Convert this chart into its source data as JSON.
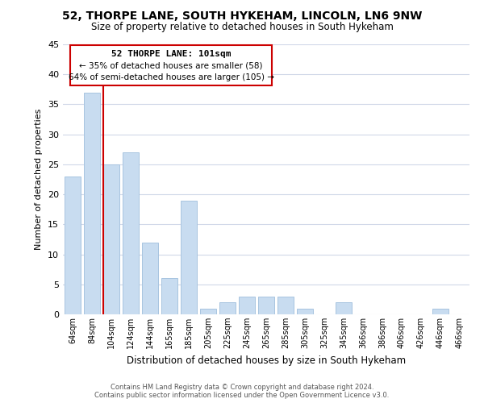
{
  "title": "52, THORPE LANE, SOUTH HYKEHAM, LINCOLN, LN6 9NW",
  "subtitle": "Size of property relative to detached houses in South Hykeham",
  "xlabel": "Distribution of detached houses by size in South Hykeham",
  "ylabel": "Number of detached properties",
  "bar_color": "#c8dcf0",
  "bar_edge_color": "#a8c4e0",
  "annotation_box_color": "#ffffff",
  "annotation_border_color": "#cc0000",
  "marker_line_color": "#cc0000",
  "bins": [
    "64sqm",
    "84sqm",
    "104sqm",
    "124sqm",
    "144sqm",
    "165sqm",
    "185sqm",
    "205sqm",
    "225sqm",
    "245sqm",
    "265sqm",
    "285sqm",
    "305sqm",
    "325sqm",
    "345sqm",
    "366sqm",
    "386sqm",
    "406sqm",
    "426sqm",
    "446sqm",
    "466sqm"
  ],
  "counts": [
    23,
    37,
    25,
    27,
    12,
    6,
    19,
    1,
    2,
    3,
    3,
    3,
    1,
    0,
    2,
    0,
    0,
    0,
    0,
    1,
    0
  ],
  "marker_bin_index": 2,
  "annotation_title": "52 THORPE LANE: 101sqm",
  "annotation_line1": "← 35% of detached houses are smaller (58)",
  "annotation_line2": "64% of semi-detached houses are larger (105) →",
  "ylim": [
    0,
    45
  ],
  "yticks": [
    0,
    5,
    10,
    15,
    20,
    25,
    30,
    35,
    40,
    45
  ],
  "footer_line1": "Contains HM Land Registry data © Crown copyright and database right 2024.",
  "footer_line2": "Contains public sector information licensed under the Open Government Licence v3.0.",
  "background_color": "#ffffff",
  "grid_color": "#d0d8e8"
}
